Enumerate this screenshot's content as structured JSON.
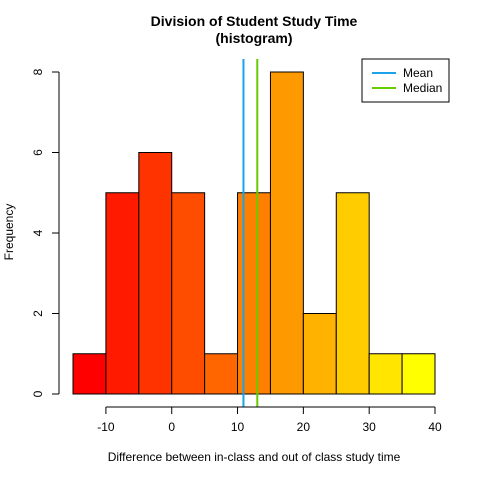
{
  "chart_data": {
    "type": "histogram",
    "title_lines": [
      "Division of Student Study Time",
      "(histogram)"
    ],
    "xlabel": "Difference between in-class and out of class study time",
    "ylabel": "Frequency",
    "bins": [
      {
        "start": -15,
        "end": -10,
        "count": 1,
        "color": "#FF0000"
      },
      {
        "start": -10,
        "end": -5,
        "count": 5,
        "color": "#FF1A00"
      },
      {
        "start": -5,
        "end": 0,
        "count": 6,
        "color": "#FF3300"
      },
      {
        "start": 0,
        "end": 5,
        "count": 5,
        "color": "#FF4D00"
      },
      {
        "start": 5,
        "end": 10,
        "count": 1,
        "color": "#FF6600"
      },
      {
        "start": 10,
        "end": 15,
        "count": 5,
        "color": "#FF8000"
      },
      {
        "start": 15,
        "end": 20,
        "count": 8,
        "color": "#FF9900"
      },
      {
        "start": 20,
        "end": 25,
        "count": 2,
        "color": "#FFB300"
      },
      {
        "start": 25,
        "end": 30,
        "count": 5,
        "color": "#FFCC00"
      },
      {
        "start": 30,
        "end": 35,
        "count": 1,
        "color": "#FFE500"
      },
      {
        "start": 35,
        "end": 40,
        "count": 1,
        "color": "#FFFF00"
      }
    ],
    "xlim": [
      -15,
      40
    ],
    "ylim": [
      0,
      8
    ],
    "x_ticks": [
      -10,
      0,
      10,
      20,
      30,
      40
    ],
    "y_ticks": [
      0,
      2,
      4,
      6,
      8
    ],
    "vlines": [
      {
        "name": "Mean",
        "x": 10.9,
        "color": "#1AA3E8"
      },
      {
        "name": "Median",
        "x": 13,
        "color": "#66CC00"
      }
    ],
    "legend_position": "top-right",
    "grid": false
  }
}
